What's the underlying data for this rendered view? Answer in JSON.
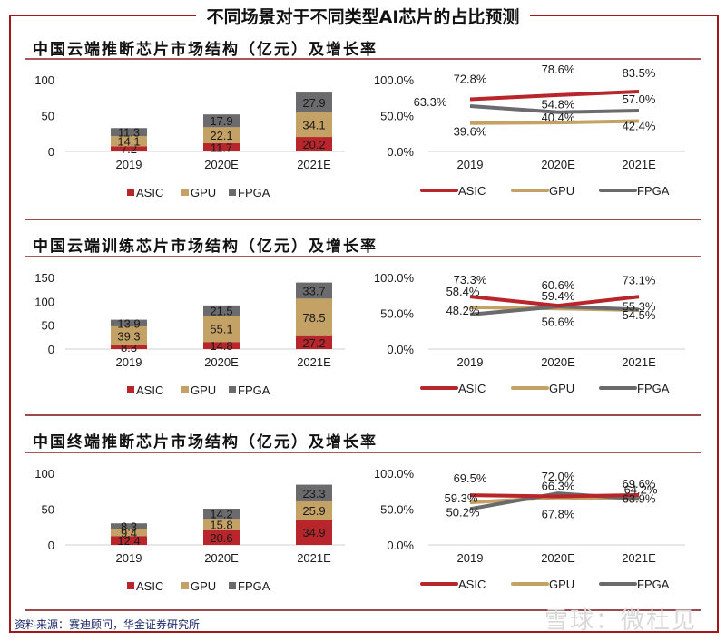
{
  "page": {
    "title": "不同场景对于不同类型AI芯片的占比预测",
    "source": "资料来源：赛迪顾问，华金证券研究所",
    "watermark": "雪球：微杜见"
  },
  "colors": {
    "frame": "#a31518",
    "ASIC": "#b8262b",
    "GPU": "#c4a265",
    "FPGA": "#6b6b6d",
    "rule": "#9b4a4e"
  },
  "sections": [
    {
      "title": "中国云端推断芯片市场结构（亿元）及增长率"
    },
    {
      "title": "中国云端训练芯片市场结构（亿元）及增长率"
    },
    {
      "title": "中国终端推断芯片市场结构（亿元）及增长率"
    }
  ],
  "legend": [
    "ASIC",
    "GPU",
    "FPGA"
  ],
  "chart_data": [
    {
      "type": "bar",
      "stacked": true,
      "title": "中国云端推断芯片市场结构（亿元）",
      "categories": [
        "2019",
        "2020E",
        "2021E"
      ],
      "series": [
        {
          "name": "ASIC",
          "values": [
            7.2,
            11.7,
            20.2
          ]
        },
        {
          "name": "GPU",
          "values": [
            14.1,
            22.1,
            34.1
          ]
        },
        {
          "name": "FPGA",
          "values": [
            11.3,
            17.9,
            27.9
          ]
        }
      ],
      "yticks": [
        "0",
        "50",
        "100"
      ],
      "ylim": [
        0,
        100
      ],
      "legend_position": "bottom"
    },
    {
      "type": "line",
      "title": "中国云端推断芯片增长率",
      "categories": [
        "2019",
        "2020E",
        "2021E"
      ],
      "series": [
        {
          "name": "ASIC",
          "values": [
            72.8,
            78.6,
            83.5
          ],
          "labels": [
            "72.8%",
            "78.6%",
            "83.5%"
          ]
        },
        {
          "name": "GPU",
          "values": [
            39.6,
            40.4,
            42.4
          ],
          "labels": [
            "39.6%",
            "40.4%",
            "42.4%"
          ]
        },
        {
          "name": "FPGA",
          "values": [
            63.3,
            54.8,
            57.0
          ],
          "labels": [
            "63.3%",
            "54.8%",
            "57.0%"
          ]
        }
      ],
      "yticks": [
        "0.0%",
        "50.0%",
        "100.0%"
      ],
      "ylim": [
        0,
        100
      ],
      "legend_position": "bottom"
    },
    {
      "type": "bar",
      "stacked": true,
      "title": "中国云端训练芯片市场结构（亿元）",
      "categories": [
        "2019",
        "2020E",
        "2021E"
      ],
      "series": [
        {
          "name": "ASIC",
          "values": [
            8.3,
            14.8,
            27.2
          ]
        },
        {
          "name": "GPU",
          "values": [
            39.3,
            55.1,
            78.5
          ]
        },
        {
          "name": "FPGA",
          "values": [
            13.9,
            21.5,
            33.7
          ]
        }
      ],
      "yticks": [
        "0",
        "50",
        "100",
        "150"
      ],
      "ylim": [
        0,
        150
      ],
      "legend_position": "bottom"
    },
    {
      "type": "line",
      "title": "中国云端训练芯片增长率",
      "categories": [
        "2019",
        "2020E",
        "2021E"
      ],
      "series": [
        {
          "name": "ASIC",
          "values": [
            73.3,
            60.6,
            73.1
          ],
          "labels": [
            "73.3%",
            "60.6%",
            "73.1%"
          ]
        },
        {
          "name": "GPU",
          "values": [
            58.4,
            56.6,
            54.5
          ],
          "labels": [
            "58.4%",
            "56.6%",
            "54.5%"
          ]
        },
        {
          "name": "FPGA",
          "values": [
            48.2,
            59.4,
            55.3
          ],
          "labels": [
            "48.2%",
            "59.4%",
            "55.3%"
          ]
        }
      ],
      "yticks": [
        "0.0%",
        "50.0%",
        "100.0%"
      ],
      "ylim": [
        0,
        100
      ],
      "legend_position": "bottom"
    },
    {
      "type": "bar",
      "stacked": true,
      "title": "中国终端推断芯片市场结构（亿元）",
      "categories": [
        "2019",
        "2020E",
        "2021E"
      ],
      "series": [
        {
          "name": "ASIC",
          "values": [
            12.4,
            20.6,
            34.9
          ]
        },
        {
          "name": "GPU",
          "values": [
            9.4,
            15.8,
            25.9
          ]
        },
        {
          "name": "FPGA",
          "values": [
            8.3,
            14.2,
            23.3
          ]
        }
      ],
      "yticks": [
        "0",
        "50",
        "100"
      ],
      "ylim": [
        0,
        100
      ],
      "legend_position": "bottom"
    },
    {
      "type": "line",
      "title": "中国终端推断芯片增长率",
      "categories": [
        "2019",
        "2020E",
        "2021E"
      ],
      "series": [
        {
          "name": "ASIC",
          "values": [
            69.5,
            67.8,
            69.6
          ],
          "labels": [
            "69.5%",
            "67.8%",
            "69.6%"
          ]
        },
        {
          "name": "GPU",
          "values": [
            59.3,
            66.3,
            63.9
          ],
          "labels": [
            "59.3%",
            "66.3%",
            "63.9%"
          ]
        },
        {
          "name": "FPGA",
          "values": [
            50.2,
            72.0,
            64.2
          ],
          "labels": [
            "50.2%",
            "72.0%",
            "64.2%"
          ]
        }
      ],
      "yticks": [
        "0.0%",
        "50.0%",
        "100.0%"
      ],
      "ylim": [
        0,
        100
      ],
      "legend_position": "bottom"
    }
  ]
}
